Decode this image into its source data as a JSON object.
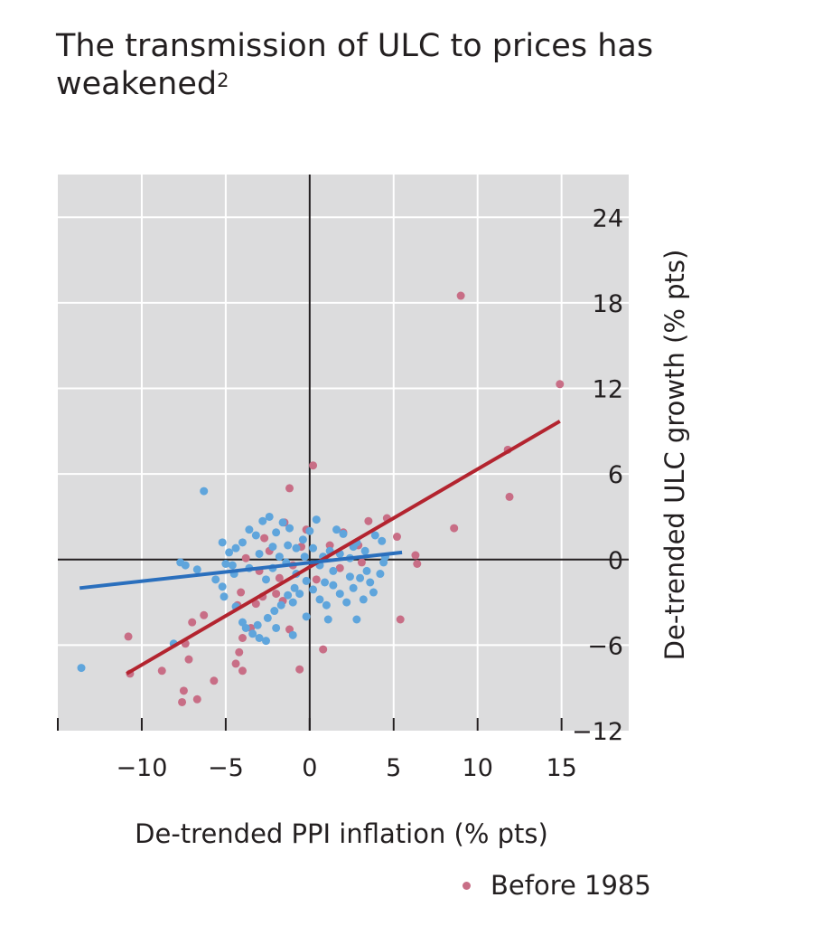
{
  "title": "The transmission of ULC to prices has weakened",
  "title_sup": "2",
  "colors": {
    "background": "#dcdcdd",
    "grid": "#ffffff",
    "axis": "#231f20",
    "before_1985": "#c86e86",
    "after_1985": "#5fa5dc",
    "fit_before": "#b3242f",
    "fit_after": "#2a6fbd"
  },
  "chart_data": {
    "type": "scatter",
    "xlabel": "De-trended PPI inflation (% pts)",
    "ylabel": "De-trended ULC growth (% pts)",
    "xlim": [
      -15,
      19
    ],
    "ylim": [
      -12,
      27
    ],
    "x_ticks": [
      -10,
      -5,
      0,
      5,
      10,
      15
    ],
    "x_tick_labels": [
      "−10",
      "−5",
      "0",
      "5",
      "10",
      "15"
    ],
    "y_ticks": [
      24,
      18,
      12,
      6,
      0,
      -6,
      -12
    ],
    "y_tick_labels": [
      "24",
      "18",
      "12",
      "6",
      "0",
      "−6",
      "−12"
    ],
    "grid": true,
    "y_axis_position": "right",
    "legend": {
      "placement": "bottom-right",
      "entries": [
        "Before 1985"
      ]
    },
    "series": [
      {
        "name": "Before 1985",
        "points": [
          [
            9.0,
            18.5
          ],
          [
            14.9,
            12.3
          ],
          [
            11.8,
            7.7
          ],
          [
            11.9,
            4.4
          ],
          [
            8.6,
            2.2
          ],
          [
            6.3,
            0.3
          ],
          [
            6.4,
            -0.3
          ],
          [
            5.2,
            1.6
          ],
          [
            5.4,
            -4.2
          ],
          [
            0.2,
            6.6
          ],
          [
            -1.2,
            5.0
          ],
          [
            -1.5,
            2.6
          ],
          [
            -0.2,
            2.1
          ],
          [
            2.0,
            1.9
          ],
          [
            3.5,
            2.7
          ],
          [
            4.6,
            2.9
          ],
          [
            2.9,
            1.0
          ],
          [
            1.2,
            1.0
          ],
          [
            -0.5,
            0.9
          ],
          [
            -2.4,
            0.6
          ],
          [
            -3.0,
            -0.8
          ],
          [
            -1.8,
            -1.3
          ],
          [
            -2.0,
            -2.4
          ],
          [
            -2.8,
            -2.6
          ],
          [
            -1.6,
            -2.9
          ],
          [
            -3.2,
            -3.1
          ],
          [
            -4.1,
            -2.3
          ],
          [
            -4.3,
            -3.2
          ],
          [
            -3.5,
            -4.8
          ],
          [
            -4.0,
            -5.5
          ],
          [
            -4.2,
            -6.5
          ],
          [
            -4.4,
            -7.3
          ],
          [
            -6.3,
            -3.9
          ],
          [
            -7.0,
            -4.4
          ],
          [
            -7.4,
            -5.9
          ],
          [
            -7.2,
            -7.0
          ],
          [
            -10.7,
            -8.0
          ],
          [
            -10.8,
            -5.4
          ],
          [
            -8.8,
            -7.8
          ],
          [
            -7.5,
            -9.2
          ],
          [
            -7.6,
            -10.0
          ],
          [
            -6.7,
            -9.8
          ],
          [
            -5.7,
            -8.5
          ],
          [
            -4.0,
            -7.8
          ],
          [
            -1.2,
            -4.9
          ],
          [
            0.8,
            -6.3
          ],
          [
            -0.6,
            -7.7
          ],
          [
            1.8,
            -0.6
          ],
          [
            0.4,
            -1.4
          ],
          [
            -1.0,
            -0.4
          ],
          [
            3.1,
            -0.2
          ],
          [
            -2.7,
            1.5
          ],
          [
            -3.8,
            0.1
          ]
        ]
      },
      {
        "name": "",
        "points": [
          [
            -13.6,
            -7.6
          ],
          [
            -6.3,
            4.8
          ],
          [
            -8.1,
            -5.9
          ],
          [
            -7.7,
            -0.2
          ],
          [
            -7.4,
            -0.4
          ],
          [
            -6.7,
            -0.7
          ],
          [
            -5.0,
            -0.3
          ],
          [
            -5.6,
            -1.4
          ],
          [
            -5.2,
            -1.9
          ],
          [
            -5.1,
            -2.6
          ],
          [
            -4.5,
            -1.0
          ],
          [
            -4.4,
            -3.3
          ],
          [
            -4.0,
            -4.4
          ],
          [
            -3.8,
            -4.8
          ],
          [
            -3.4,
            -5.2
          ],
          [
            -3.0,
            -5.5
          ],
          [
            -2.6,
            -5.7
          ],
          [
            -2.5,
            -4.1
          ],
          [
            -2.1,
            -3.6
          ],
          [
            -1.7,
            -3.2
          ],
          [
            -1.3,
            -2.5
          ],
          [
            -1.0,
            -3.0
          ],
          [
            -0.6,
            -2.4
          ],
          [
            -0.2,
            -1.5
          ],
          [
            0.2,
            -2.1
          ],
          [
            0.6,
            -2.8
          ],
          [
            1.0,
            -3.2
          ],
          [
            1.4,
            -1.8
          ],
          [
            1.8,
            -2.4
          ],
          [
            2.2,
            -3.0
          ],
          [
            2.6,
            -2.0
          ],
          [
            3.0,
            -1.3
          ],
          [
            3.4,
            -0.8
          ],
          [
            3.8,
            -2.3
          ],
          [
            4.2,
            -1.0
          ],
          [
            4.5,
            0.2
          ],
          [
            4.3,
            1.3
          ],
          [
            3.9,
            1.7
          ],
          [
            3.3,
            0.6
          ],
          [
            2.8,
            1.2
          ],
          [
            2.4,
            0.1
          ],
          [
            2.0,
            1.8
          ],
          [
            1.6,
            2.1
          ],
          [
            1.2,
            0.6
          ],
          [
            0.8,
            0.2
          ],
          [
            0.4,
            2.8
          ],
          [
            0.0,
            2.0
          ],
          [
            -0.4,
            1.4
          ],
          [
            -0.8,
            0.8
          ],
          [
            -1.2,
            2.2
          ],
          [
            -1.6,
            2.6
          ],
          [
            -2.0,
            1.9
          ],
          [
            -2.4,
            3.0
          ],
          [
            -2.8,
            2.7
          ],
          [
            -3.2,
            1.7
          ],
          [
            -3.6,
            2.1
          ],
          [
            -4.0,
            1.2
          ],
          [
            -4.4,
            0.8
          ],
          [
            -4.8,
            0.5
          ],
          [
            -5.2,
            1.2
          ],
          [
            -3.0,
            0.4
          ],
          [
            -2.2,
            -0.6
          ],
          [
            -1.4,
            -0.2
          ],
          [
            -0.8,
            -1.0
          ],
          [
            0.6,
            -0.4
          ],
          [
            1.4,
            -0.8
          ],
          [
            2.4,
            -1.2
          ],
          [
            3.2,
            -2.8
          ],
          [
            1.1,
            -4.2
          ],
          [
            -0.2,
            -4.0
          ],
          [
            -1.0,
            -5.3
          ],
          [
            -2.0,
            -4.8
          ],
          [
            -3.1,
            -4.6
          ],
          [
            -0.9,
            -2.0
          ],
          [
            -1.8,
            0.2
          ],
          [
            0.2,
            0.8
          ],
          [
            1.8,
            0.4
          ],
          [
            -2.6,
            -1.4
          ],
          [
            -3.6,
            -0.6
          ],
          [
            -4.6,
            -0.4
          ],
          [
            2.8,
            -4.2
          ],
          [
            3.6,
            -1.6
          ],
          [
            -1.3,
            1.0
          ],
          [
            0.9,
            -1.6
          ],
          [
            -0.3,
            0.2
          ],
          [
            4.4,
            -0.2
          ],
          [
            2.6,
            0.9
          ],
          [
            -2.2,
            0.9
          ]
        ]
      }
    ],
    "fit_lines": [
      {
        "series": "Before 1985",
        "x": [
          -10.9,
          14.9
        ],
        "y": [
          -8.0,
          9.7
        ]
      },
      {
        "series": "",
        "x": [
          -13.7,
          5.5
        ],
        "y": [
          -2.0,
          0.5
        ]
      }
    ]
  },
  "legend_before": "Before 1985"
}
